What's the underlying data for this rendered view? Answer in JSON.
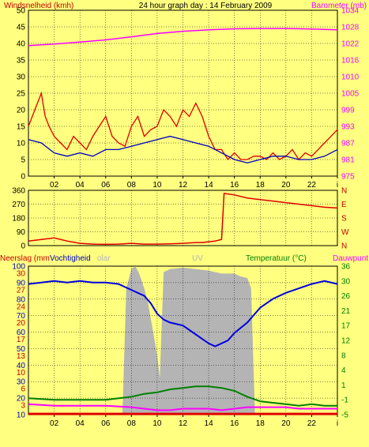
{
  "title": "24 hour graph day : 14 February 2009",
  "x_ticks": [
    "02",
    "04",
    "06",
    "08",
    "10",
    "12",
    "14",
    "16",
    "18",
    "20",
    "22",
    "i"
  ],
  "colors": {
    "background": "#FFFF80",
    "plot": "#FFFF80",
    "wind": "#E00000",
    "gust_avg": "#0000C0",
    "barometer": "#FF00FF",
    "humidity": "#0000E0",
    "temperature": "#008000",
    "dewpoint": "#FF00FF",
    "solar": "#B4B4B4",
    "rain": "#E00000"
  },
  "chart_data": [
    {
      "type": "line",
      "title": "",
      "left_label": "Windsnelheid (kmh)",
      "right_label": "Barometer (mb)",
      "x_range": [
        0,
        24
      ],
      "ylim_left": [
        0,
        50
      ],
      "ylim_right": [
        975,
        1035
      ],
      "yticks_left": [
        "0",
        "5",
        "10",
        "15",
        "20",
        "25",
        "30",
        "35",
        "40",
        "45",
        "50"
      ],
      "yticks_right": [
        "975",
        "981",
        "987",
        "993",
        "999",
        "1005",
        "1010",
        "1016",
        "1022",
        "1028",
        "1034"
      ],
      "grid": true,
      "series": [
        {
          "key": "barometer",
          "axis": "right",
          "x": [
            0,
            2,
            4,
            6,
            8,
            10,
            12,
            14,
            16,
            18,
            20,
            22,
            24
          ],
          "y": [
            1022.2,
            1022.8,
            1023.5,
            1024.3,
            1025.4,
            1026.6,
            1027.4,
            1027.9,
            1028.3,
            1028.4,
            1028.4,
            1028.2,
            1027.9
          ]
        },
        {
          "key": "wind",
          "axis": "left",
          "x": [
            0,
            0.5,
            1,
            1.3,
            1.6,
            2,
            2.5,
            3,
            3.5,
            4,
            4.5,
            5,
            5.5,
            6,
            6.5,
            7,
            7.5,
            8,
            8.5,
            9,
            9.5,
            10,
            10.5,
            11,
            11.5,
            12,
            12.5,
            13,
            13.5,
            14,
            14.5,
            15,
            15.5,
            16,
            16.5,
            17,
            17.5,
            18,
            18.5,
            19,
            19.5,
            20,
            20.5,
            21,
            21.5,
            22,
            22.5,
            23,
            23.5,
            24
          ],
          "y": [
            15,
            20,
            25,
            18,
            15,
            12,
            10,
            8,
            12,
            10,
            8,
            12,
            15,
            18,
            12,
            10,
            9,
            15,
            18,
            12,
            14,
            15,
            20,
            18,
            15,
            20,
            18,
            22,
            18,
            12,
            8,
            8,
            5,
            7,
            5,
            5,
            6,
            6,
            5,
            7,
            5,
            6,
            8,
            5,
            7,
            6,
            8,
            10,
            12,
            14
          ]
        },
        {
          "key": "gust_avg",
          "axis": "left",
          "x": [
            0,
            1,
            2,
            3,
            4,
            5,
            6,
            7,
            8,
            9,
            10,
            11,
            12,
            13,
            14,
            15,
            16,
            17,
            18,
            19,
            20,
            21,
            22,
            23,
            24
          ],
          "y": [
            11,
            10,
            7,
            6,
            7,
            6,
            8,
            8,
            9,
            10,
            11,
            12,
            11,
            10,
            9,
            7,
            5,
            4,
            5,
            6,
            6,
            5,
            5,
            6,
            8
          ]
        }
      ]
    },
    {
      "type": "line",
      "title": "",
      "x_range": [
        0,
        24
      ],
      "ylim_left": [
        0,
        360
      ],
      "yticks_left": [
        "0",
        "90",
        "180",
        "270",
        "360"
      ],
      "yticks_right": [
        "N",
        "W",
        "S",
        "E",
        "N"
      ],
      "grid": true,
      "series": [
        {
          "key": "wind",
          "axis": "left",
          "x": [
            0,
            1,
            2,
            3,
            4,
            5,
            6,
            7,
            8,
            9,
            10,
            11,
            12,
            13,
            13.5,
            14,
            14.5,
            15,
            15.2,
            16,
            17,
            18,
            19,
            20,
            21,
            22,
            23,
            24
          ],
          "y": [
            30,
            40,
            50,
            30,
            15,
            10,
            8,
            10,
            15,
            10,
            10,
            12,
            15,
            20,
            20,
            25,
            30,
            40,
            340,
            330,
            310,
            300,
            290,
            280,
            270,
            260,
            250,
            245
          ]
        }
      ]
    },
    {
      "type": "line",
      "title": "",
      "left_label": "Neerslag (mm",
      "left_label2": "Vochtigheid",
      "left_label_ghost": "olar",
      "center_label": "UV",
      "right_label": "Temperatuur (°C)",
      "right_label2": "Dauwpunt",
      "x_range": [
        0,
        24
      ],
      "ylim_left": [
        0,
        100
      ],
      "ylim_right": [
        -5,
        40
      ],
      "yticks_left_humidity": [
        "10",
        "20",
        "30",
        "40",
        "50",
        "60",
        "70",
        "80",
        "90",
        "100"
      ],
      "yticks_left_rain": [
        "0",
        "3",
        "6",
        "10",
        "13",
        "17",
        "20",
        "24",
        "27",
        "30"
      ],
      "yticks_right": [
        "-5",
        "-1",
        "1",
        "4",
        "8",
        "12",
        "17",
        "21",
        "26",
        "30",
        "36"
      ],
      "grid": true,
      "series": [
        {
          "key": "humidity",
          "axis": "left",
          "x": [
            0,
            1,
            2,
            3,
            4,
            5,
            6,
            7,
            8,
            9,
            9.5,
            10,
            10.5,
            11,
            12,
            13,
            14,
            14.5,
            15,
            15.5,
            16,
            17,
            18,
            19,
            20,
            21,
            22,
            23,
            24
          ],
          "y": [
            88,
            89,
            90,
            89,
            90,
            89,
            89,
            88,
            84,
            80,
            75,
            68,
            64,
            62,
            60,
            54,
            48,
            46,
            48,
            50,
            55,
            62,
            72,
            78,
            82,
            85,
            88,
            90,
            88
          ]
        },
        {
          "key": "temperature",
          "axis": "left",
          "x": [
            0,
            2,
            4,
            6,
            8,
            9,
            10,
            11,
            12,
            13,
            14,
            15,
            16,
            17,
            18,
            19,
            20,
            21,
            22,
            23,
            24
          ],
          "y": [
            11,
            10,
            10,
            10,
            12,
            14,
            15,
            17,
            18,
            19,
            19,
            18,
            16,
            12,
            9,
            8,
            7,
            6,
            7,
            6,
            6
          ]
        },
        {
          "key": "dewpoint",
          "axis": "left",
          "x": [
            0,
            2,
            4,
            6,
            8,
            9,
            10,
            11,
            12,
            13,
            14,
            15,
            16,
            17,
            18,
            19,
            20,
            21,
            22,
            23,
            24
          ],
          "y": [
            7,
            6,
            6,
            6,
            5,
            4,
            3,
            3,
            4,
            4,
            4,
            3,
            4,
            5,
            5,
            5,
            5,
            4,
            4,
            4,
            4
          ]
        },
        {
          "key": "rain",
          "axis": "left",
          "x": [
            0,
            24
          ],
          "y": [
            0.5,
            0.5
          ]
        }
      ],
      "solar": {
        "x": [
          7.3,
          7.6,
          8,
          8.3,
          8.6,
          9,
          9.3,
          9.6,
          10,
          10.2,
          10.5,
          11,
          12,
          13,
          14,
          15,
          16,
          16.5,
          17,
          17.3,
          17.6
        ],
        "y": [
          0,
          85,
          98,
          100,
          95,
          85,
          75,
          60,
          40,
          25,
          96,
          98,
          99,
          98,
          97,
          95,
          95,
          93,
          92,
          85,
          0
        ]
      }
    }
  ]
}
